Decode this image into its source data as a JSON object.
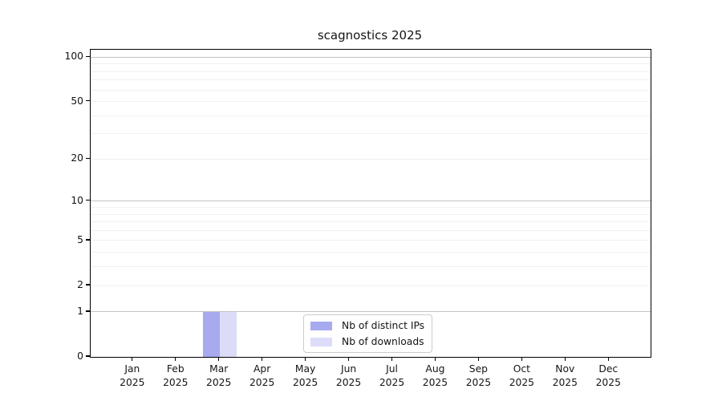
{
  "chart_data": {
    "type": "bar",
    "title": "scagnostics 2025",
    "x_categories": [
      {
        "month": "Jan",
        "year": "2025"
      },
      {
        "month": "Feb",
        "year": "2025"
      },
      {
        "month": "Mar",
        "year": "2025"
      },
      {
        "month": "Apr",
        "year": "2025"
      },
      {
        "month": "May",
        "year": "2025"
      },
      {
        "month": "Jun",
        "year": "2025"
      },
      {
        "month": "Jul",
        "year": "2025"
      },
      {
        "month": "Aug",
        "year": "2025"
      },
      {
        "month": "Sep",
        "year": "2025"
      },
      {
        "month": "Oct",
        "year": "2025"
      },
      {
        "month": "Nov",
        "year": "2025"
      },
      {
        "month": "Dec",
        "year": "2025"
      }
    ],
    "series": [
      {
        "name": "Nb of distinct IPs",
        "color": "#a8aaf0",
        "values": [
          0,
          0,
          1,
          0,
          0,
          0,
          0,
          0,
          0,
          0,
          0,
          0
        ]
      },
      {
        "name": "Nb of downloads",
        "color": "#dcdcf9",
        "values": [
          0,
          0,
          1,
          0,
          0,
          0,
          0,
          0,
          0,
          0,
          0,
          0
        ]
      }
    ],
    "y_axis": {
      "scale": "log1p",
      "tick_labels": [
        0,
        1,
        2,
        5,
        10,
        20,
        50,
        100
      ],
      "max": 113,
      "grid_major": [
        1,
        10,
        100
      ],
      "grid_minor": [
        2,
        3,
        4,
        5,
        6,
        7,
        8,
        9,
        20,
        30,
        40,
        50,
        60,
        70,
        80,
        90
      ]
    },
    "xlabel": "",
    "ylabel": "",
    "legend_position": "bottom-center",
    "grid": "horizontal",
    "colors": {
      "spine": "#000000",
      "grid_major": "#c2c2c2",
      "grid_minor": "#f0f0f0",
      "text": "#141414",
      "legend_border": "#cbcbcb",
      "background": "#ffffff"
    }
  }
}
